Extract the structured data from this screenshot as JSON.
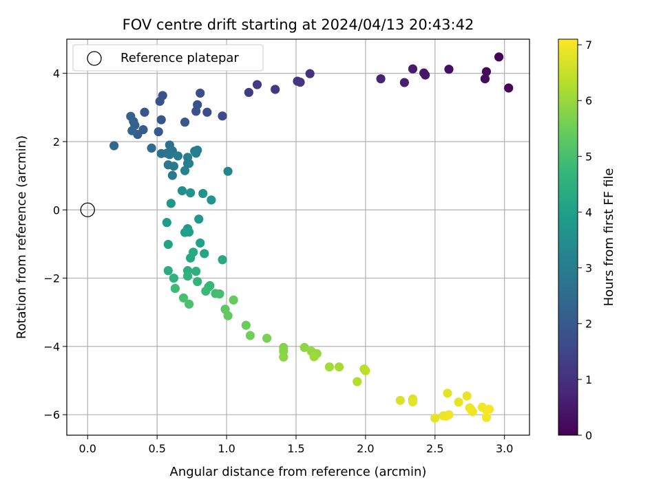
{
  "chart_data": {
    "type": "scatter",
    "title": "FOV centre drift starting at 2024/04/13 20:43:42",
    "xlabel": "Angular distance from reference (arcmin)",
    "ylabel": "Rotation from reference (arcmin)",
    "xlim": [
      -0.15,
      3.18
    ],
    "ylim": [
      -6.6,
      5.0
    ],
    "xticks": [
      0.0,
      0.5,
      1.0,
      1.5,
      2.0,
      2.5,
      3.0
    ],
    "xtick_labels": [
      "0.0",
      "0.5",
      "1.0",
      "1.5",
      "2.0",
      "2.5",
      "3.0"
    ],
    "yticks": [
      -6,
      -4,
      -2,
      0,
      2,
      4
    ],
    "ytick_labels": [
      "−6",
      "−4",
      "−2",
      "0",
      "2",
      "4"
    ],
    "grid": true,
    "legend": {
      "placement": "top-left",
      "label": "Reference platepar"
    },
    "reference_point": {
      "x": 0.0,
      "y": 0.0
    },
    "colorbar": {
      "label": "Hours from first FF file",
      "min": 0,
      "max": 7.1,
      "ticks": [
        0,
        1,
        2,
        3,
        4,
        5,
        6,
        7
      ],
      "tick_labels": [
        "0",
        "1",
        "2",
        "3",
        "4",
        "5",
        "6",
        "7"
      ],
      "colormap": [
        "#440154",
        "#482878",
        "#3e4989",
        "#31688e",
        "#26828e",
        "#1f9e89",
        "#35b779",
        "#6ece58",
        "#b5de2b",
        "#fde725"
      ]
    },
    "series": [
      {
        "x": [
          2.96,
          3.03,
          2.87,
          2.86,
          2.6,
          2.43,
          2.42,
          2.34,
          2.28,
          2.11,
          1.6,
          1.53,
          1.51,
          1.35,
          1.22,
          1.16,
          0.97,
          0.86,
          0.81,
          0.79,
          0.78,
          0.7,
          0.54,
          0.52,
          0.53,
          0.51,
          0.41,
          0.4,
          0.36,
          0.34,
          0.33,
          0.31,
          0.32,
          0.19,
          0.46,
          0.53,
          0.57,
          0.59,
          0.61,
          0.58,
          0.59,
          0.62,
          0.61,
          0.65,
          0.72,
          0.72,
          0.73,
          0.7,
          0.77,
          0.79,
          0.78,
          1.01,
          0.68,
          0.74,
          0.83,
          0.89,
          0.6,
          0.8,
          0.57,
          0.72,
          0.73,
          0.7,
          0.81,
          0.58,
          0.84,
          0.74,
          0.76,
          0.97,
          0.58,
          0.72,
          0.78,
          0.62,
          0.72,
          0.79,
          0.88,
          0.87,
          0.85,
          0.63,
          0.92,
          0.95,
          0.69,
          0.73,
          0.99,
          1.01,
          1.05,
          1.14,
          1.17,
          1.29,
          1.41,
          1.41,
          1.41,
          1.56,
          1.61,
          1.65,
          1.63,
          1.74,
          1.81,
          1.94,
          1.99,
          2.0,
          2.25,
          2.34,
          2.34,
          2.5,
          2.56,
          2.58,
          2.6,
          2.59,
          2.67,
          2.73,
          2.75,
          2.77,
          2.76,
          2.84,
          2.87,
          2.87,
          2.89
        ],
        "y": [
          4.48,
          3.57,
          4.05,
          3.84,
          4.12,
          3.95,
          4.01,
          4.13,
          3.73,
          3.84,
          3.99,
          3.74,
          3.77,
          3.53,
          3.67,
          3.44,
          2.75,
          2.86,
          3.42,
          3.08,
          2.89,
          2.57,
          3.35,
          3.18,
          2.64,
          2.29,
          2.86,
          2.35,
          2.21,
          2.48,
          2.59,
          2.74,
          2.32,
          1.88,
          1.81,
          1.65,
          1.66,
          1.9,
          1.73,
          1.32,
          1.62,
          1.28,
          1.01,
          1.58,
          1.54,
          1.36,
          1.36,
          1.15,
          1.72,
          1.75,
          1.66,
          1.13,
          0.56,
          0.5,
          0.48,
          0.29,
          0.19,
          -0.27,
          -0.37,
          -0.55,
          -0.65,
          -0.66,
          -0.97,
          -1.01,
          -1.28,
          -1.41,
          -1.24,
          -1.46,
          -1.78,
          -1.78,
          -1.8,
          -2.0,
          -1.94,
          -2.1,
          -2.22,
          -2.26,
          -2.38,
          -2.3,
          -2.45,
          -2.46,
          -2.58,
          -2.76,
          -2.91,
          -3.1,
          -2.64,
          -3.38,
          -3.68,
          -3.76,
          -4.03,
          -4.14,
          -4.31,
          -4.03,
          -4.14,
          -4.21,
          -4.3,
          -4.6,
          -4.6,
          -5.03,
          -4.66,
          -4.71,
          -5.58,
          -5.54,
          -5.62,
          -6.1,
          -6.03,
          -6.04,
          -6.0,
          -5.37,
          -5.63,
          -5.45,
          -5.8,
          -5.91,
          -5.85,
          -5.78,
          -5.86,
          -6.08,
          -5.84
        ],
        "c": [
          0.05,
          0.1,
          0.15,
          0.2,
          0.3,
          0.4,
          0.45,
          0.55,
          0.6,
          0.7,
          1.05,
          1.1,
          1.12,
          1.2,
          1.25,
          1.3,
          1.6,
          1.7,
          1.75,
          1.8,
          1.85,
          1.95,
          1.75,
          1.8,
          1.9,
          2.0,
          1.95,
          2.05,
          2.1,
          2.15,
          2.2,
          2.25,
          2.3,
          2.4,
          2.5,
          2.6,
          2.6,
          2.65,
          2.7,
          2.75,
          2.8,
          2.85,
          2.9,
          2.95,
          3.0,
          3.05,
          3.1,
          3.15,
          2.95,
          3.0,
          3.05,
          3.2,
          3.5,
          3.6,
          3.65,
          3.7,
          3.75,
          3.8,
          3.85,
          3.9,
          3.95,
          4.0,
          4.05,
          4.1,
          4.15,
          4.2,
          4.25,
          4.3,
          4.4,
          4.45,
          4.5,
          4.55,
          4.6,
          4.65,
          4.7,
          4.75,
          4.8,
          4.85,
          4.9,
          4.95,
          5.0,
          5.05,
          5.3,
          5.35,
          5.4,
          5.45,
          5.55,
          5.65,
          5.75,
          5.8,
          5.85,
          5.9,
          5.95,
          6.0,
          6.05,
          6.1,
          6.15,
          6.3,
          6.35,
          6.4,
          6.7,
          6.75,
          6.8,
          6.85,
          6.9,
          6.92,
          6.95,
          6.8,
          6.85,
          6.88,
          6.9,
          6.92,
          6.95,
          6.98,
          7.0,
          7.02,
          7.05
        ]
      }
    ]
  }
}
